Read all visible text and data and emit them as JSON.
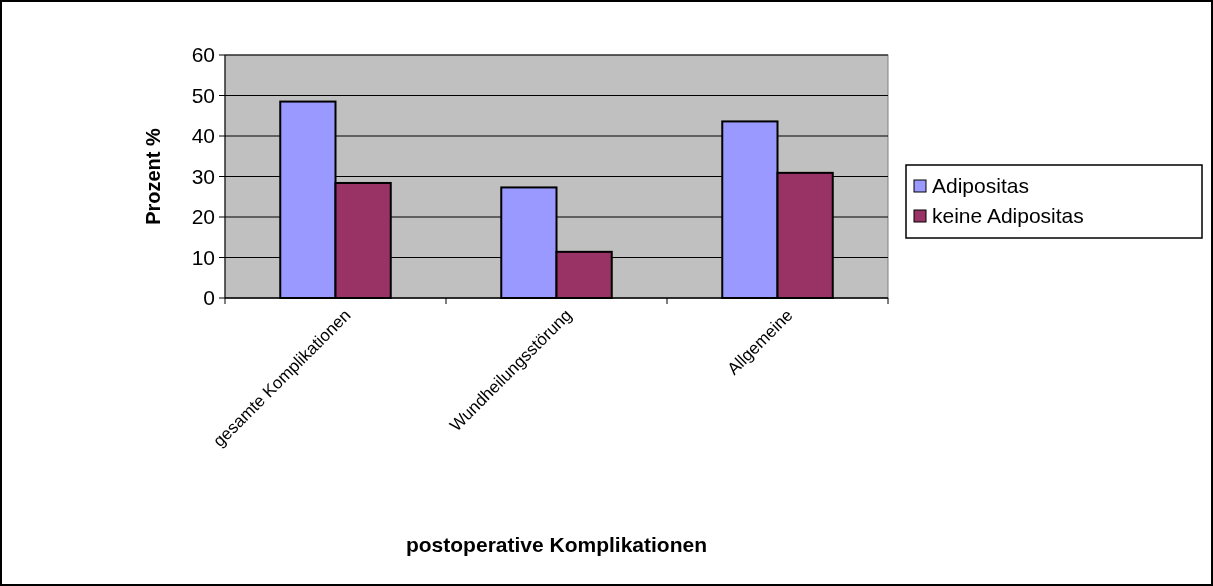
{
  "chart_data": {
    "type": "bar",
    "xlabel": "postoperative Komplikationen",
    "ylabel": "Prozent %",
    "categories": [
      "gesamte Komplikationen",
      "Wundheilungsstörung",
      "Allgemeine"
    ],
    "series": [
      {
        "name": "Adipositas",
        "color": "#9999ff",
        "values": [
          48.5,
          27.3,
          43.6
        ]
      },
      {
        "name": "keine Adipositas",
        "color": "#993366",
        "values": [
          28.4,
          11.4,
          30.9
        ]
      }
    ],
    "ylim": [
      0,
      60
    ],
    "yticks": [
      0,
      10,
      20,
      30,
      40,
      50,
      60
    ],
    "grid": "y",
    "legend": "right"
  }
}
